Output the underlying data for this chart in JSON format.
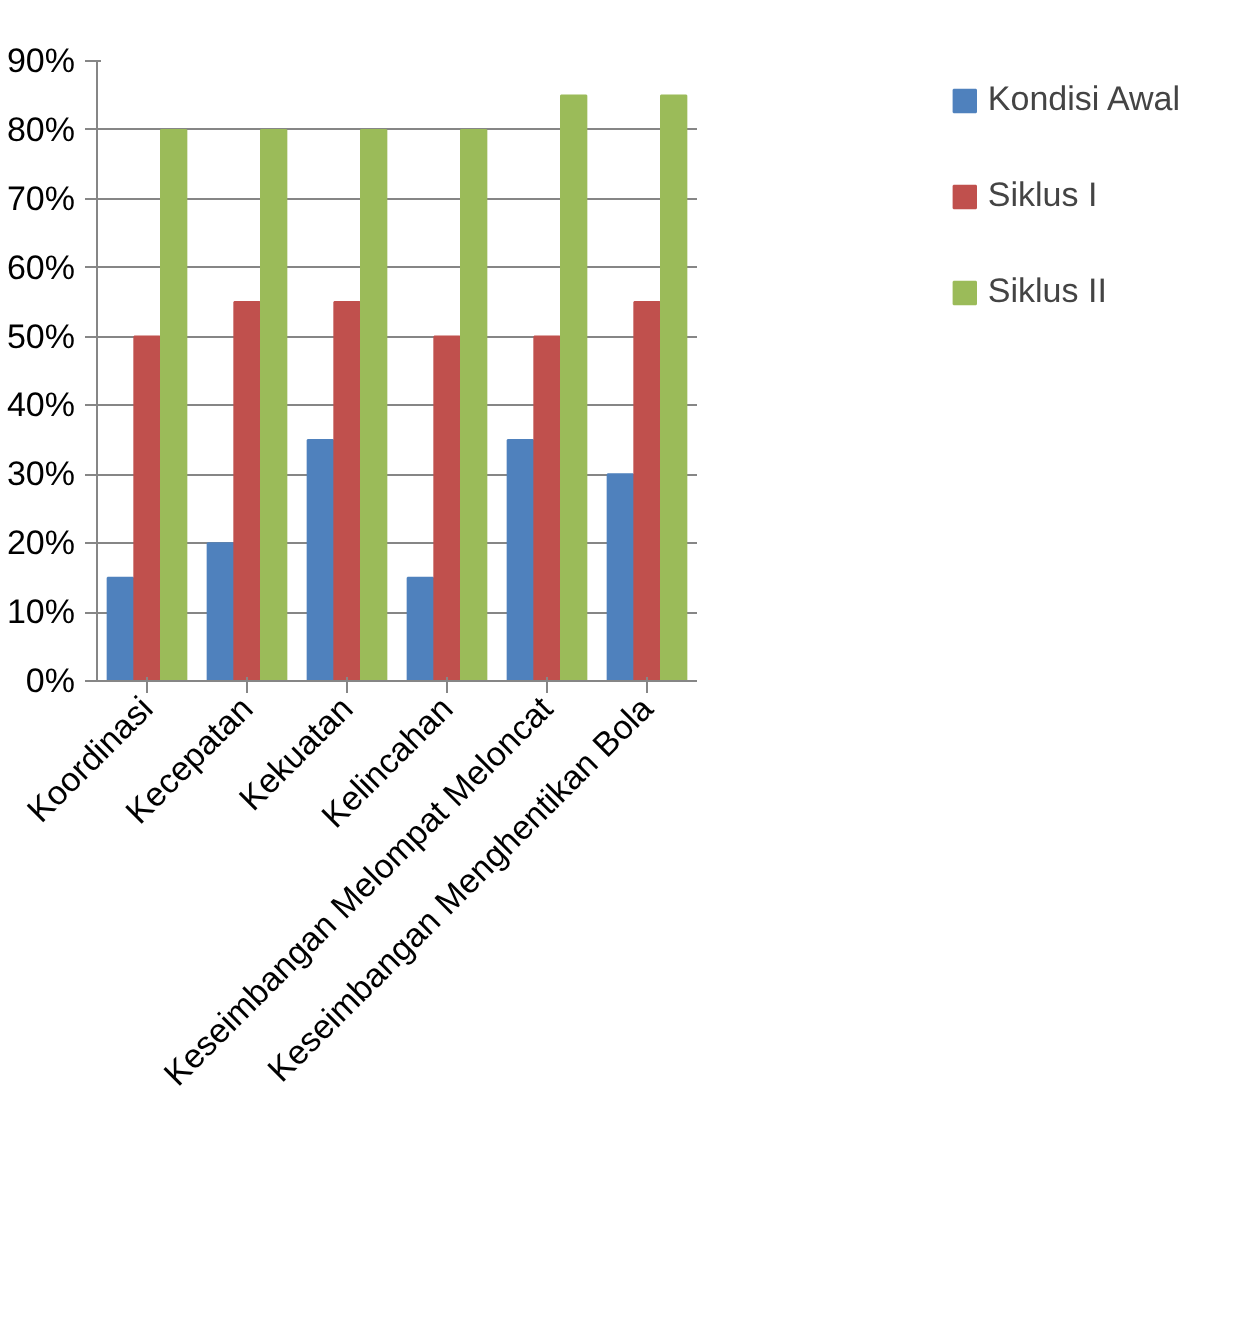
{
  "chart_data": {
    "type": "bar",
    "categories": [
      "Koordinasi",
      "Kecepatan",
      "Kekuatan",
      "Kelincahan",
      "Keseimbangan Melompat Meloncat",
      "Keseimbangan Menghentikan Bola"
    ],
    "series": [
      {
        "name": "Kondisi Awal",
        "color": "#4f81bd",
        "values": [
          15,
          20,
          35,
          15,
          35,
          30
        ]
      },
      {
        "name": "Siklus I",
        "color": "#c0504d",
        "values": [
          50,
          55,
          55,
          50,
          50,
          55
        ]
      },
      {
        "name": "Siklus II",
        "color": "#9bbb59",
        "values": [
          80,
          80,
          80,
          80,
          85,
          85
        ]
      }
    ],
    "ylim": [
      0,
      90
    ],
    "yticks": [
      {
        "value": 0,
        "label": "0%"
      },
      {
        "value": 10,
        "label": "10%"
      },
      {
        "value": 20,
        "label": "20%"
      },
      {
        "value": 30,
        "label": "30%"
      },
      {
        "value": 40,
        "label": "40%"
      },
      {
        "value": 50,
        "label": "50%"
      },
      {
        "value": 60,
        "label": "60%"
      },
      {
        "value": 70,
        "label": "70%"
      },
      {
        "value": 80,
        "label": "80%"
      },
      {
        "value": 90,
        "label": "90%"
      }
    ],
    "grid": "y",
    "legend": "right"
  }
}
